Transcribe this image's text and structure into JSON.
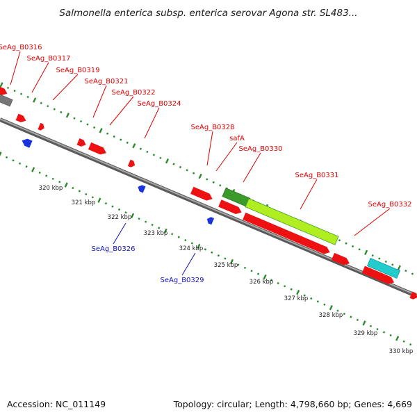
{
  "title": "Salmonella enterica subsp. enterica serovar Agona str. SL483...",
  "footer": {
    "accession": "Accession: NC_011149",
    "summary": "Topology: circular; Length: 4,798,660 bp; Genes: 4,669"
  },
  "colors": {
    "forward_cds": "#ee1111",
    "reverse_cds": "#1a33dd",
    "backbone": "#8a8a8a",
    "tick": "#2a8a2a",
    "label_forward": "#dd0000",
    "label_reverse": "#1111bb",
    "rna_highlight": "#b0ee22",
    "rna_highlight_dark": "#3a9a2a",
    "other_feature": "#22cccc"
  },
  "forward_labels": [
    "SeAg_B0316",
    "SeAg_B0317",
    "SeAg_B0319",
    "SeAg_B0321",
    "SeAg_B0322",
    "SeAg_B0324",
    "SeAg_B0328",
    "safA",
    "SeAg_B0330",
    "SeAg_B0331",
    "SeAg_B0332"
  ],
  "reverse_labels": [
    "SeAg_B0326",
    "SeAg_B0329"
  ],
  "kbp_labels": [
    "320 kbp",
    "321 kbp",
    "322 kbp",
    "323 kbp",
    "324 kbp",
    "325 kbp",
    "326 kbp",
    "327 kbp",
    "328 kbp",
    "329 kbp",
    "330 kbp"
  ]
}
